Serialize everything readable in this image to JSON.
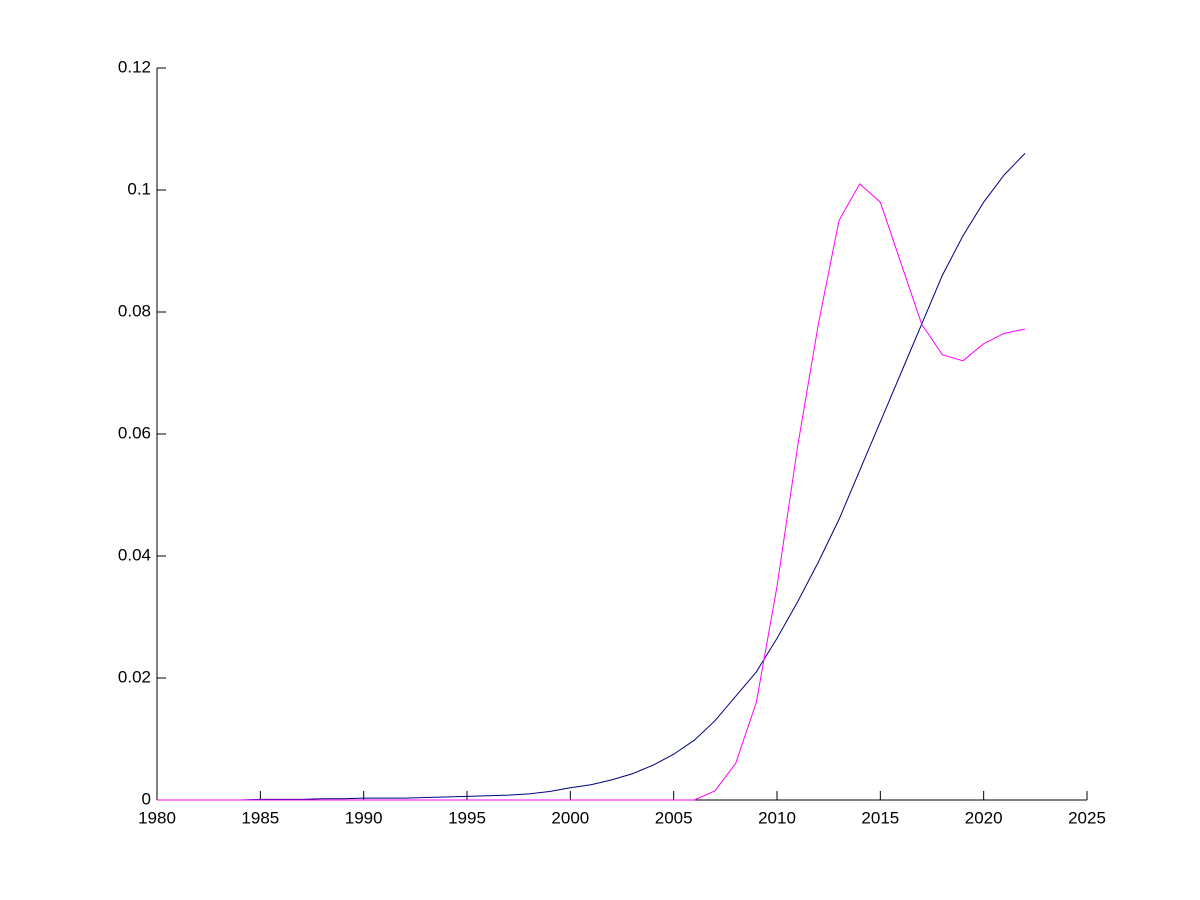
{
  "chart_data": {
    "type": "line",
    "x": [
      1980,
      1981,
      1982,
      1983,
      1984,
      1985,
      1986,
      1987,
      1988,
      1989,
      1990,
      1991,
      1992,
      1993,
      1994,
      1995,
      1996,
      1997,
      1998,
      1999,
      2000,
      2001,
      2002,
      2003,
      2004,
      2005,
      2006,
      2007,
      2008,
      2009,
      2010,
      2011,
      2012,
      2013,
      2014,
      2015,
      2016,
      2017,
      2018,
      2019,
      2020,
      2021,
      2022
    ],
    "series": [
      {
        "color": "#000080",
        "values": [
          0,
          0,
          0,
          0,
          0,
          0.0001,
          0.0001,
          0.0001,
          0.0002,
          0.0002,
          0.0003,
          0.0003,
          0.0003,
          0.0004,
          0.0005,
          0.0006,
          0.0007,
          0.0008,
          0.001,
          0.0014,
          0.002,
          0.0025,
          0.0033,
          0.0043,
          0.0057,
          0.0075,
          0.0098,
          0.013,
          0.017,
          0.021,
          0.0265,
          0.0325,
          0.039,
          0.046,
          0.054,
          0.062,
          0.07,
          0.078,
          0.086,
          0.0925,
          0.098,
          0.1025,
          0.106
        ]
      },
      {
        "color": "#ff00ff",
        "values": [
          0,
          0,
          0,
          0,
          0,
          0,
          0,
          0,
          0,
          0,
          0,
          0,
          0,
          0,
          0,
          0,
          0,
          0,
          0,
          0,
          0,
          0,
          0,
          0,
          0,
          0,
          0,
          0.0015,
          0.006,
          0.016,
          0.035,
          0.058,
          0.078,
          0.095,
          0.101,
          0.098,
          0.088,
          0.078,
          0.073,
          0.072,
          0.0748,
          0.0765,
          0.0772
        ]
      }
    ],
    "xlim": [
      1980,
      2025
    ],
    "xticks": [
      1980,
      1985,
      1990,
      1995,
      2000,
      2005,
      2010,
      2015,
      2020,
      2025
    ],
    "ylim": [
      0,
      0.12
    ],
    "yticks": [
      0,
      0.02,
      0.04,
      0.06,
      0.08,
      0.1,
      0.12
    ]
  }
}
